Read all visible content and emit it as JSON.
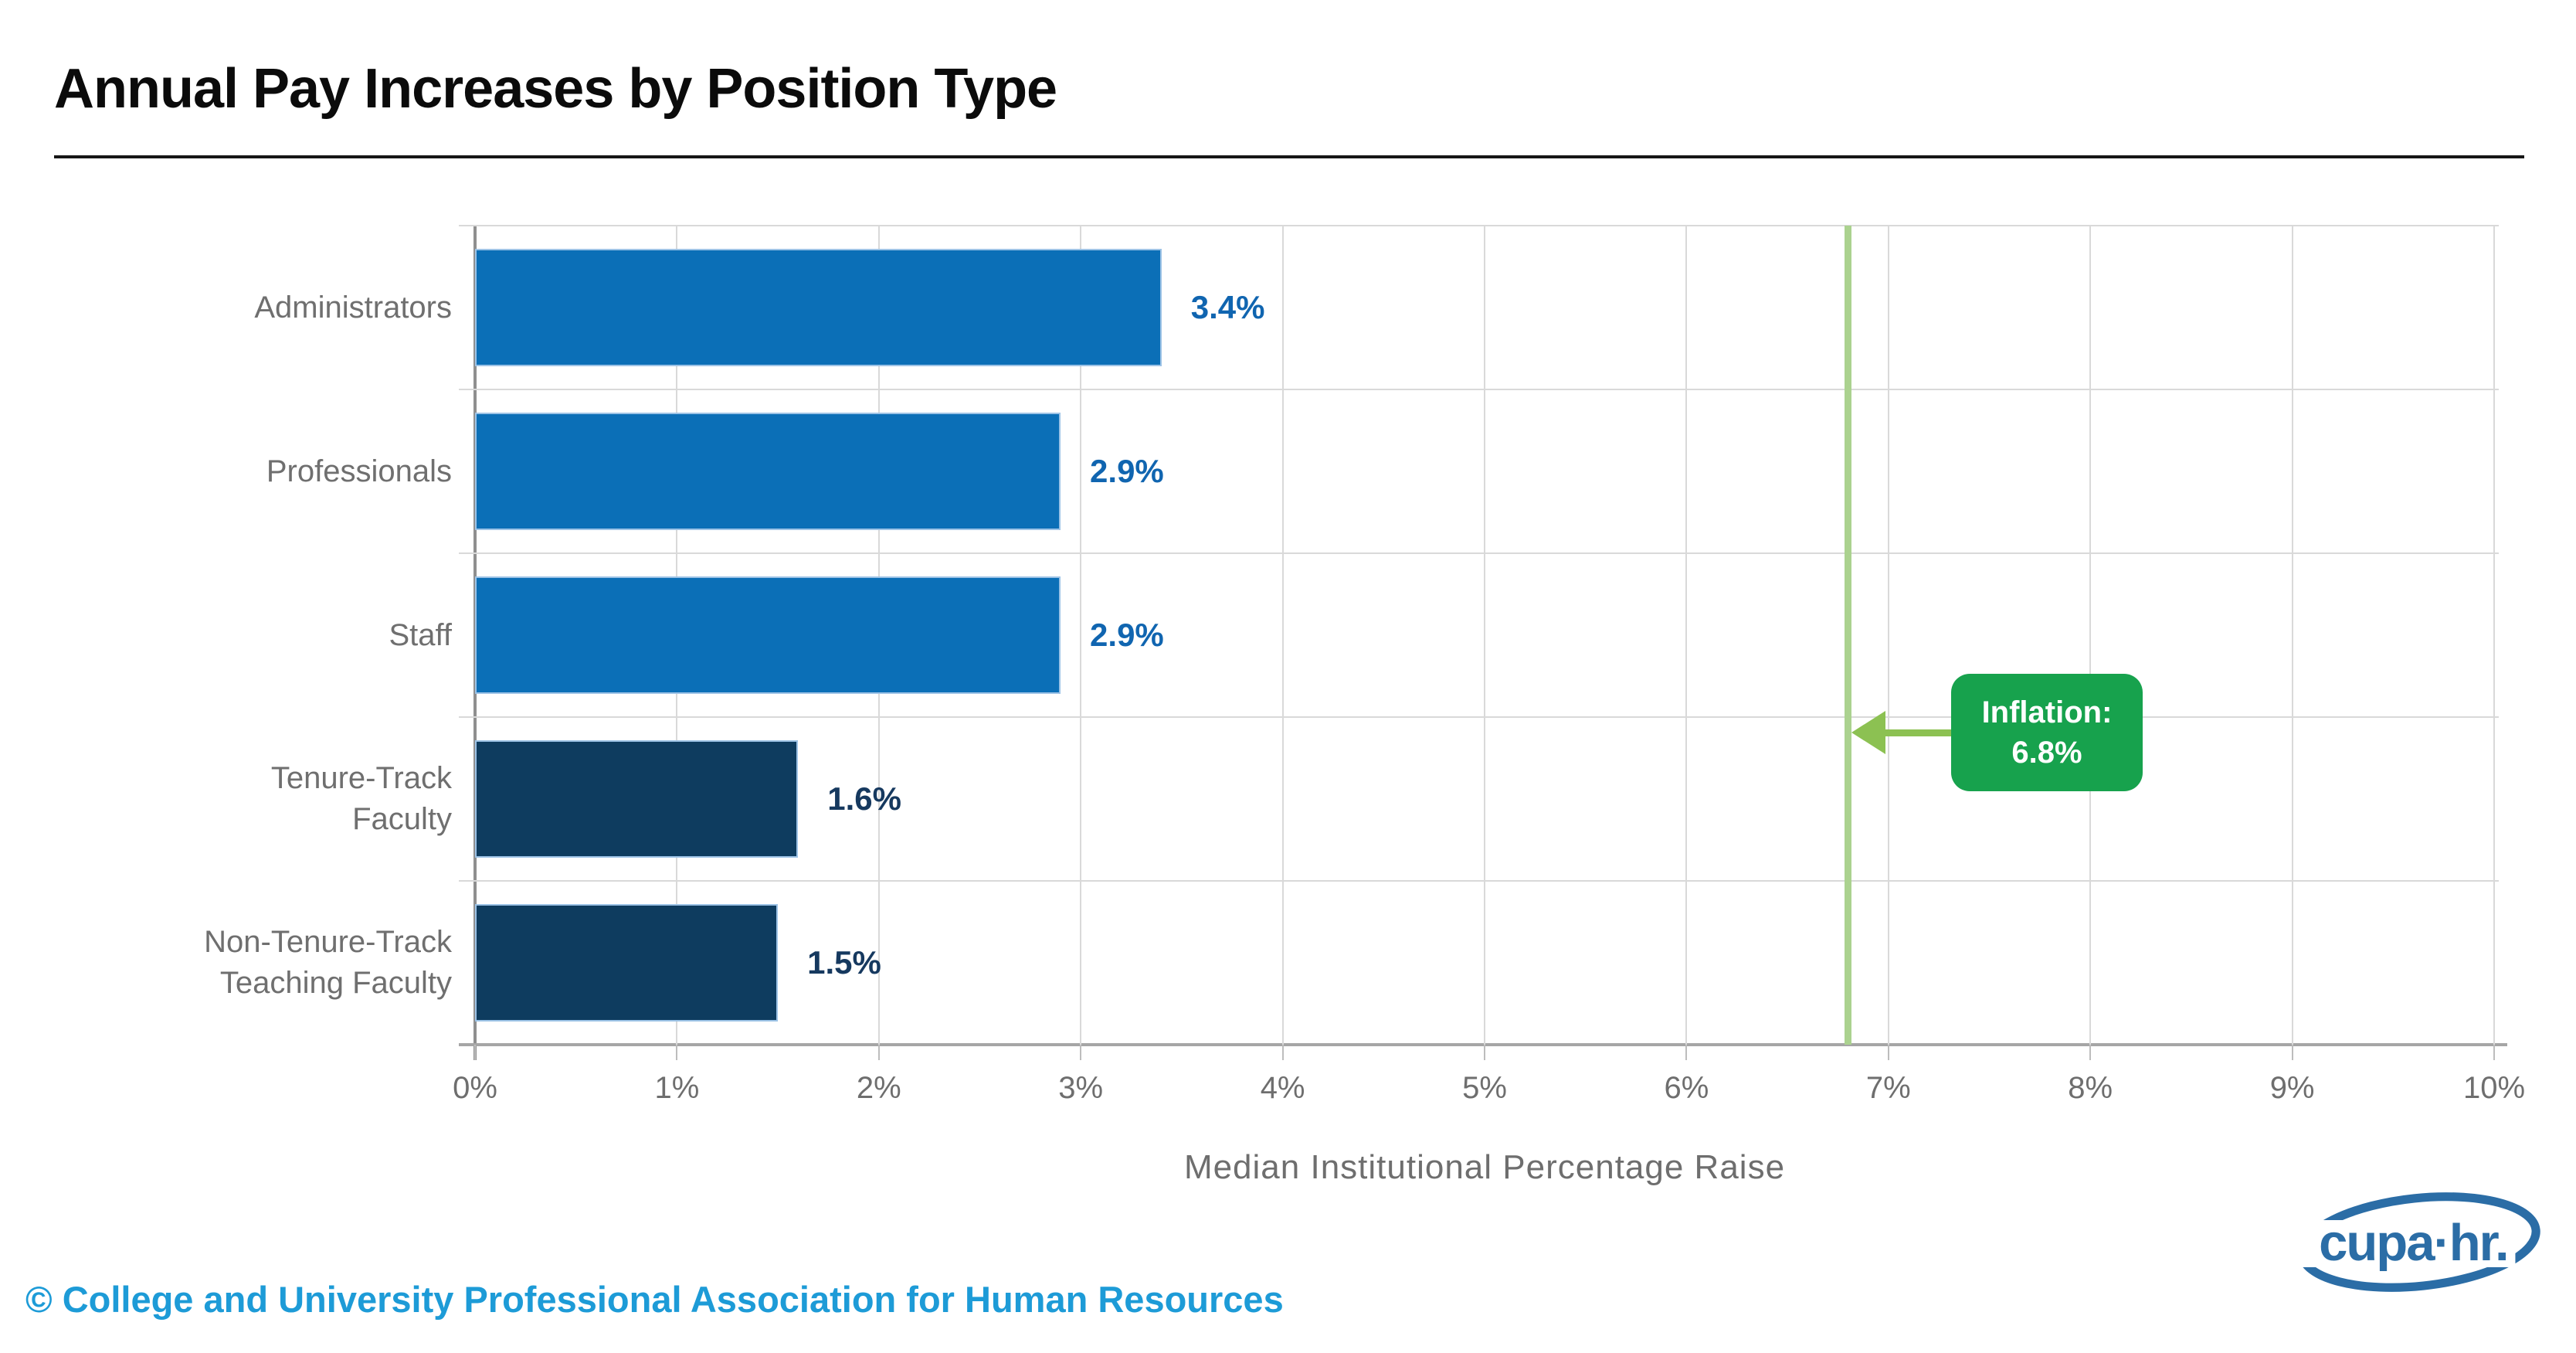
{
  "header": {
    "title": "Annual Pay Increases by Position Type"
  },
  "chart_data": {
    "type": "bar",
    "orientation": "horizontal",
    "title": "Annual Pay Increases by Position Type",
    "categories": [
      [
        "Administrators"
      ],
      [
        "Professionals"
      ],
      [
        "Staff"
      ],
      [
        "Tenure-Track",
        "Faculty"
      ],
      [
        "Non-Tenure-Track",
        "Teaching Faculty"
      ]
    ],
    "values": [
      3.4,
      2.9,
      2.9,
      1.6,
      1.5
    ],
    "value_labels": [
      "3.4%",
      "2.9%",
      "2.9%",
      "1.6%",
      "1.5%"
    ],
    "bar_colors": [
      "#0B6FB7",
      "#0B6FB7",
      "#0B6FB7",
      "#0E3C5F",
      "#0E3C5F"
    ],
    "label_colors": [
      "#1065B0",
      "#1065B0",
      "#1065B0",
      "#16395F",
      "#16395F"
    ],
    "xlabel": "Median Institutional Percentage Raise",
    "x_ticks": [
      "0%",
      "1%",
      "2%",
      "3%",
      "4%",
      "5%",
      "6%",
      "7%",
      "8%",
      "9%",
      "10%"
    ],
    "xlim": [
      0,
      10
    ],
    "grid": true,
    "legend": "none",
    "annotation": {
      "x": 6.8,
      "label_line1": "Inflation:",
      "label_line2": "6.8%",
      "line_color": "#ABD28F",
      "arrow_color": "#8CC152",
      "box_color": "#17A24D",
      "text_color": "#FFFFFF"
    }
  },
  "colors": {
    "bar_blue": "#0B6FB7",
    "bar_navy": "#0E3C5F",
    "bar_border": "#9DC3E6",
    "gridline": "#D9D9D9",
    "axis_line": "#8F8F8F",
    "text_gray": "#6F6F6F",
    "title_black": "#0B0B0B",
    "copyright_blue": "#1D9BD7",
    "logo_blue": "#2B6DA6"
  },
  "footer": {
    "copyright": "© College and University Professional Association for Human Resources",
    "logo_text": "cupa·hr."
  }
}
